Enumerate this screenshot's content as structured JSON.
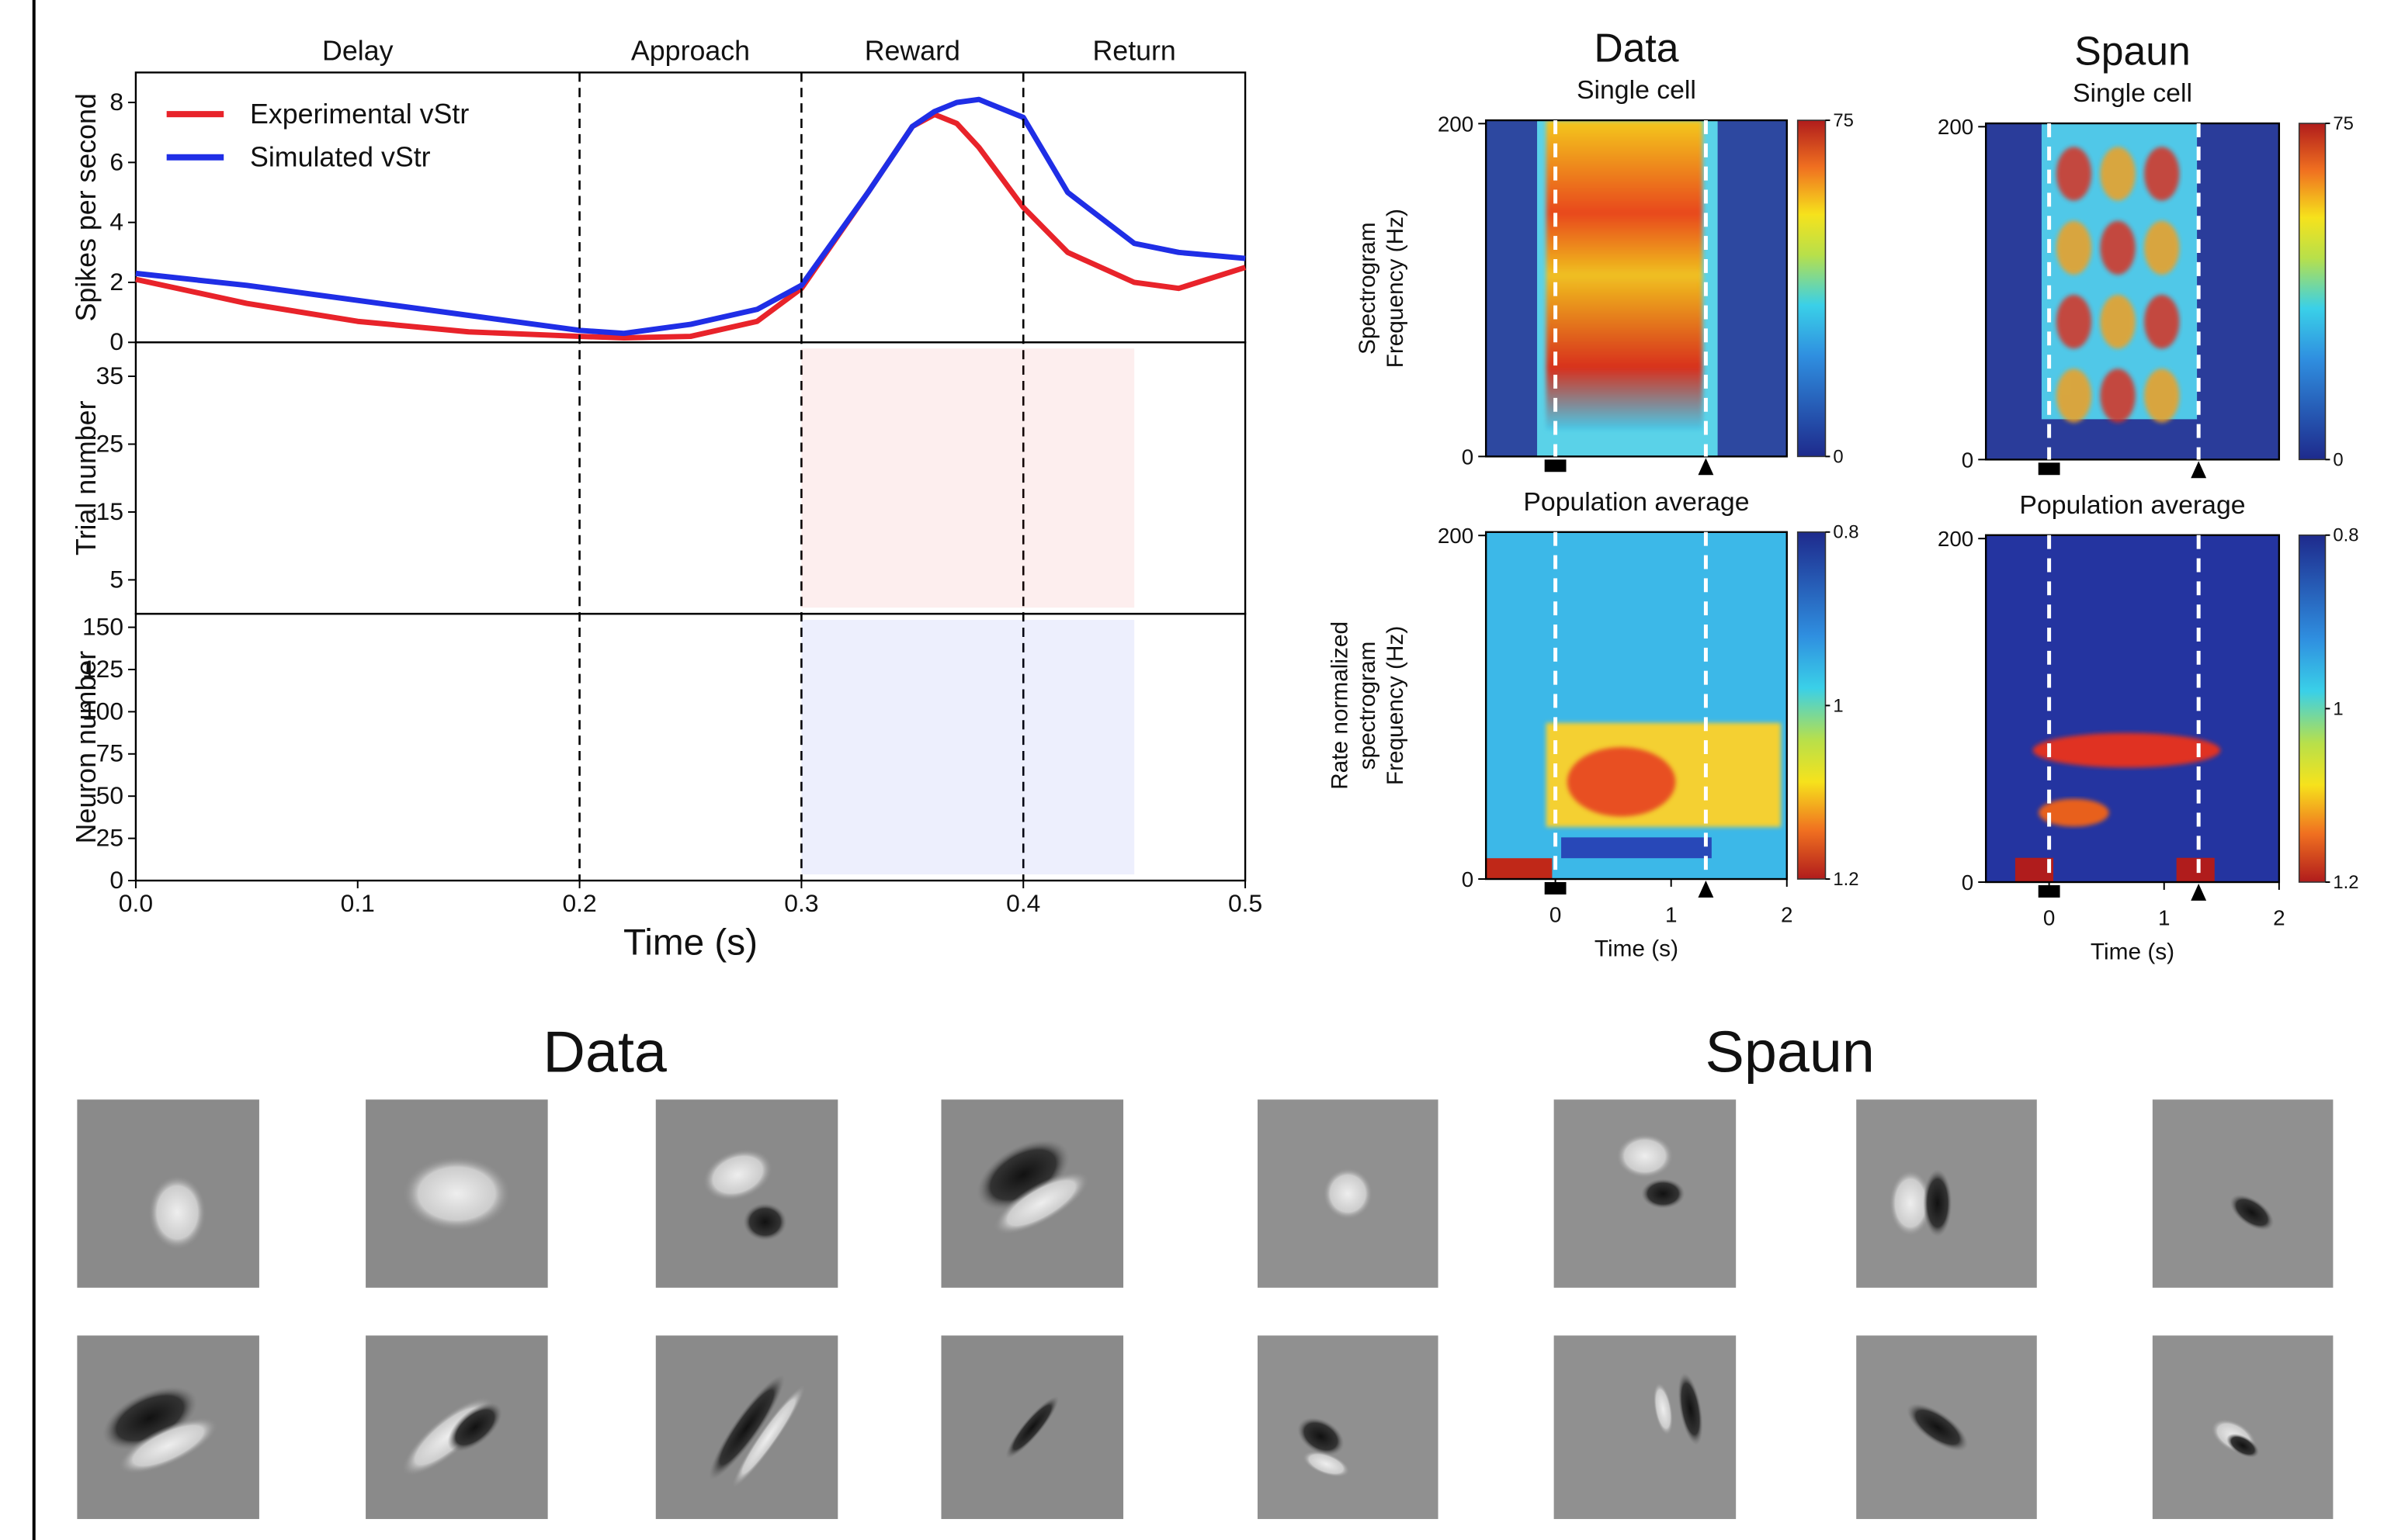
{
  "chart_data": [
    {
      "type": "line",
      "phase_labels": [
        "Delay",
        "Approach",
        "Reward",
        "Return"
      ],
      "phase_boundaries": [
        0.2,
        0.3,
        0.4
      ],
      "ylabel": "Spikes per second",
      "x": [
        0,
        0.05,
        0.1,
        0.15,
        0.2,
        0.22,
        0.25,
        0.28,
        0.3,
        0.33,
        0.35,
        0.36,
        0.37,
        0.38,
        0.4,
        0.42,
        0.45,
        0.47,
        0.5
      ],
      "series": [
        {
          "name": "Experimental vStr",
          "color": "#e8232a",
          "values": [
            2.1,
            1.3,
            0.7,
            0.35,
            0.2,
            0.15,
            0.2,
            0.7,
            1.8,
            5,
            7.2,
            7.6,
            7.3,
            6.5,
            4.5,
            3,
            2,
            1.8,
            2.5
          ]
        },
        {
          "name": "Simulated vStr",
          "color": "#1f2ee6",
          "values": [
            2.3,
            1.9,
            1.4,
            0.9,
            0.4,
            0.3,
            0.6,
            1.1,
            1.9,
            5,
            7.2,
            7.7,
            8.0,
            8.1,
            7.5,
            5,
            3.3,
            3,
            2.8
          ]
        }
      ],
      "xlim": [
        0,
        0.5
      ],
      "ylim": [
        0,
        9
      ],
      "yticks": [
        0,
        2,
        4,
        6,
        8
      ]
    },
    {
      "type": "raster",
      "ylabel": "Trial number",
      "color": "#e8232a",
      "xlim": [
        0,
        0.5
      ],
      "ylim": [
        0,
        40
      ],
      "yticks": [
        5,
        15,
        25,
        35
      ]
    },
    {
      "type": "raster",
      "ylabel": "Neuron number",
      "color": "#1f2ee6",
      "xlim": [
        0,
        0.5
      ],
      "ylim": [
        0,
        158
      ],
      "yticks": [
        0,
        25,
        50,
        75,
        100,
        125,
        150
      ],
      "xticks": [
        {
          "value": 0,
          "label": "0.0"
        },
        {
          "value": 0.1,
          "label": "0.1"
        },
        {
          "value": 0.2,
          "label": "0.2"
        },
        {
          "value": 0.3,
          "label": "0.3"
        },
        {
          "value": 0.4,
          "label": "0.4"
        },
        {
          "value": 0.5,
          "label": "0.5"
        }
      ],
      "xlabel": "Time (s)"
    },
    {
      "type": "heatmap",
      "title": "Data",
      "subtitle": "Single cell",
      "ylabel": [
        "Spectrogram",
        "Frequency (Hz)"
      ],
      "xlim": [
        -0.6,
        2
      ],
      "ylim": [
        0,
        202
      ],
      "yticks": [
        0,
        200
      ],
      "clim": [
        0,
        75
      ],
      "cticks": [
        0,
        75
      ],
      "event_times": [
        0,
        1.3
      ]
    },
    {
      "type": "heatmap",
      "title": "Spaun",
      "subtitle": "Single cell",
      "xlim": [
        -0.55,
        2
      ],
      "ylim": [
        0,
        202
      ],
      "yticks": [
        0,
        200
      ],
      "clim": [
        0,
        75
      ],
      "cticks": [
        0,
        75
      ],
      "event_times": [
        0,
        1.3
      ]
    },
    {
      "type": "heatmap",
      "subtitle": "Population average",
      "ylabel": [
        "Rate  normalized",
        "spectrogram",
        "Frequency (Hz)"
      ],
      "xlim": [
        -0.6,
        2
      ],
      "ylim": [
        0,
        202
      ],
      "yticks": [
        0,
        200
      ],
      "xticks": [
        0,
        1,
        2
      ],
      "xlabel": "Time (s)",
      "clim": [
        0.8,
        1.2
      ],
      "cticks": [
        0.8,
        1,
        1.2
      ],
      "event_times": [
        0,
        1.3
      ]
    },
    {
      "type": "heatmap",
      "subtitle": "Population average",
      "xlim": [
        -0.55,
        2
      ],
      "ylim": [
        0,
        202
      ],
      "yticks": [
        0,
        200
      ],
      "xticks": [
        0,
        1,
        2
      ],
      "xlabel": "Time (s)",
      "clim": [
        0.8,
        1.2
      ],
      "cticks": [
        0.8,
        1,
        1.2
      ],
      "event_times": [
        0,
        1.3
      ]
    }
  ],
  "receptive_fields": {
    "data_title": "Data",
    "spaun_title": "Spaun"
  }
}
